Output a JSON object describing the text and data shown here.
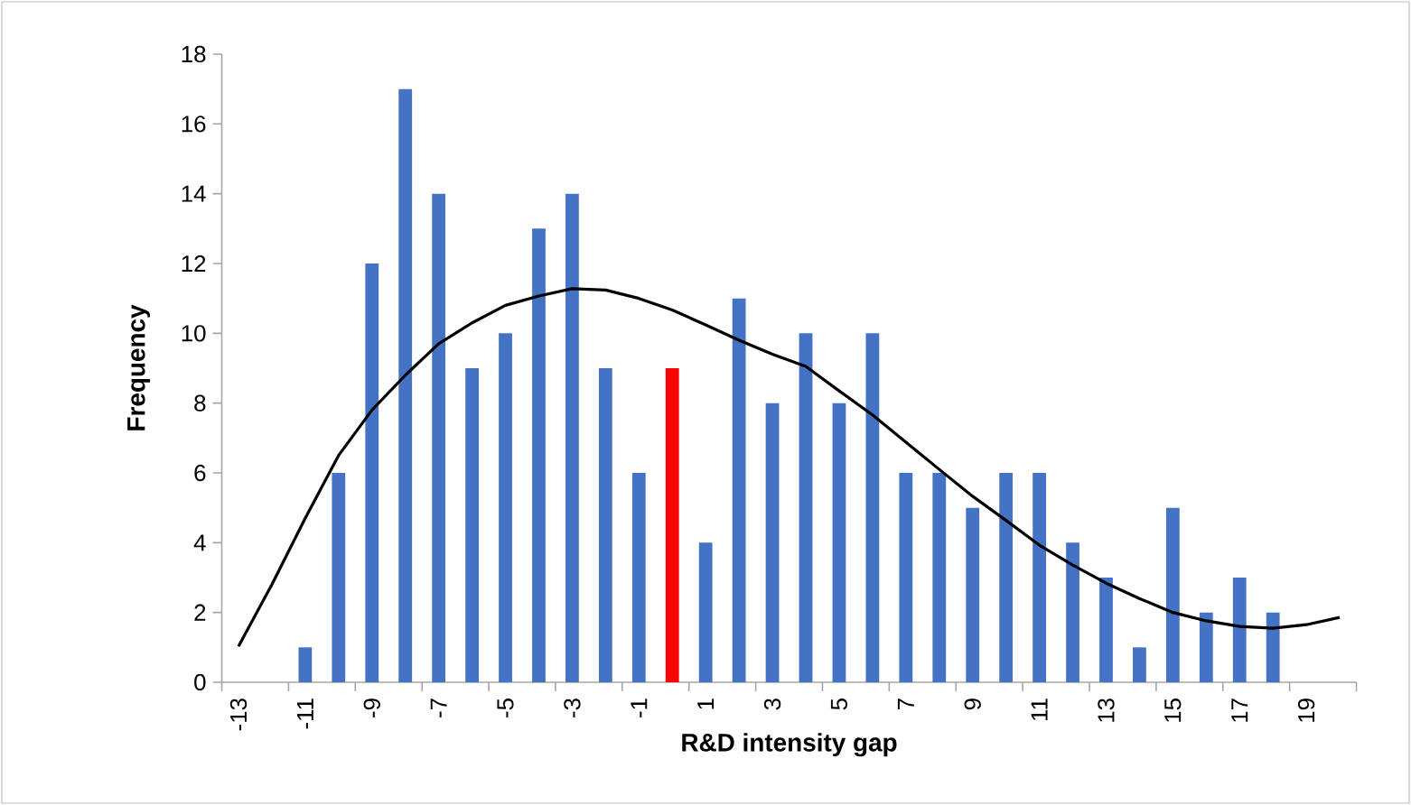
{
  "chart_data": {
    "type": "bar",
    "xlabel": "R&D intensity gap",
    "ylabel": "Frequency",
    "categories": [
      "-13",
      null,
      "-11",
      null,
      "-9",
      null,
      "-7",
      null,
      "-5",
      null,
      "-3",
      null,
      "-1",
      null,
      "1",
      null,
      "3",
      null,
      "5",
      null,
      "7",
      null,
      "9",
      null,
      "11",
      null,
      "13",
      null,
      "15",
      null,
      "17",
      null,
      "19",
      null
    ],
    "ylim": [
      0,
      18
    ],
    "yticks": [
      0,
      2,
      4,
      6,
      8,
      10,
      12,
      14,
      16,
      18
    ],
    "grid": false,
    "series": [
      {
        "values": [
          0,
          0,
          1,
          6,
          12,
          17,
          14,
          9,
          10,
          13,
          14,
          9,
          6,
          9,
          4,
          11,
          8,
          10,
          8,
          10,
          6,
          6,
          5,
          6,
          6,
          4,
          3,
          1,
          5,
          2,
          3,
          2,
          0,
          0
        ],
        "colors": [
          "#4472c4",
          "#4472c4",
          "#4472c4",
          "#4472c4",
          "#4472c4",
          "#4472c4",
          "#4472c4",
          "#4472c4",
          "#4472c4",
          "#4472c4",
          "#4472c4",
          "#4472c4",
          "#4472c4",
          "#ff0000",
          "#4472c4",
          "#4472c4",
          "#4472c4",
          "#4472c4",
          "#4472c4",
          "#4472c4",
          "#4472c4",
          "#4472c4",
          "#4472c4",
          "#4472c4",
          "#4472c4",
          "#4472c4",
          "#4472c4",
          "#4472c4",
          "#4472c4",
          "#4472c4",
          "#4472c4",
          "#4472c4",
          "#4472c4",
          "#4472c4"
        ]
      },
      {
        "type": "line",
        "color": "#000000",
        "marker": "none",
        "line_style": "solid",
        "values": [
          1.03,
          2.8,
          4.7,
          6.5,
          7.8,
          8.8,
          9.7,
          10.3,
          10.8,
          11.07,
          11.28,
          11.24,
          11.0,
          10.67,
          10.24,
          9.8,
          9.4,
          9.05,
          8.35,
          7.66,
          6.88,
          6.1,
          5.33,
          4.64,
          3.93,
          3.36,
          2.84,
          2.4,
          2.0,
          1.76,
          1.6,
          1.55,
          1.65,
          1.86
        ]
      }
    ]
  }
}
